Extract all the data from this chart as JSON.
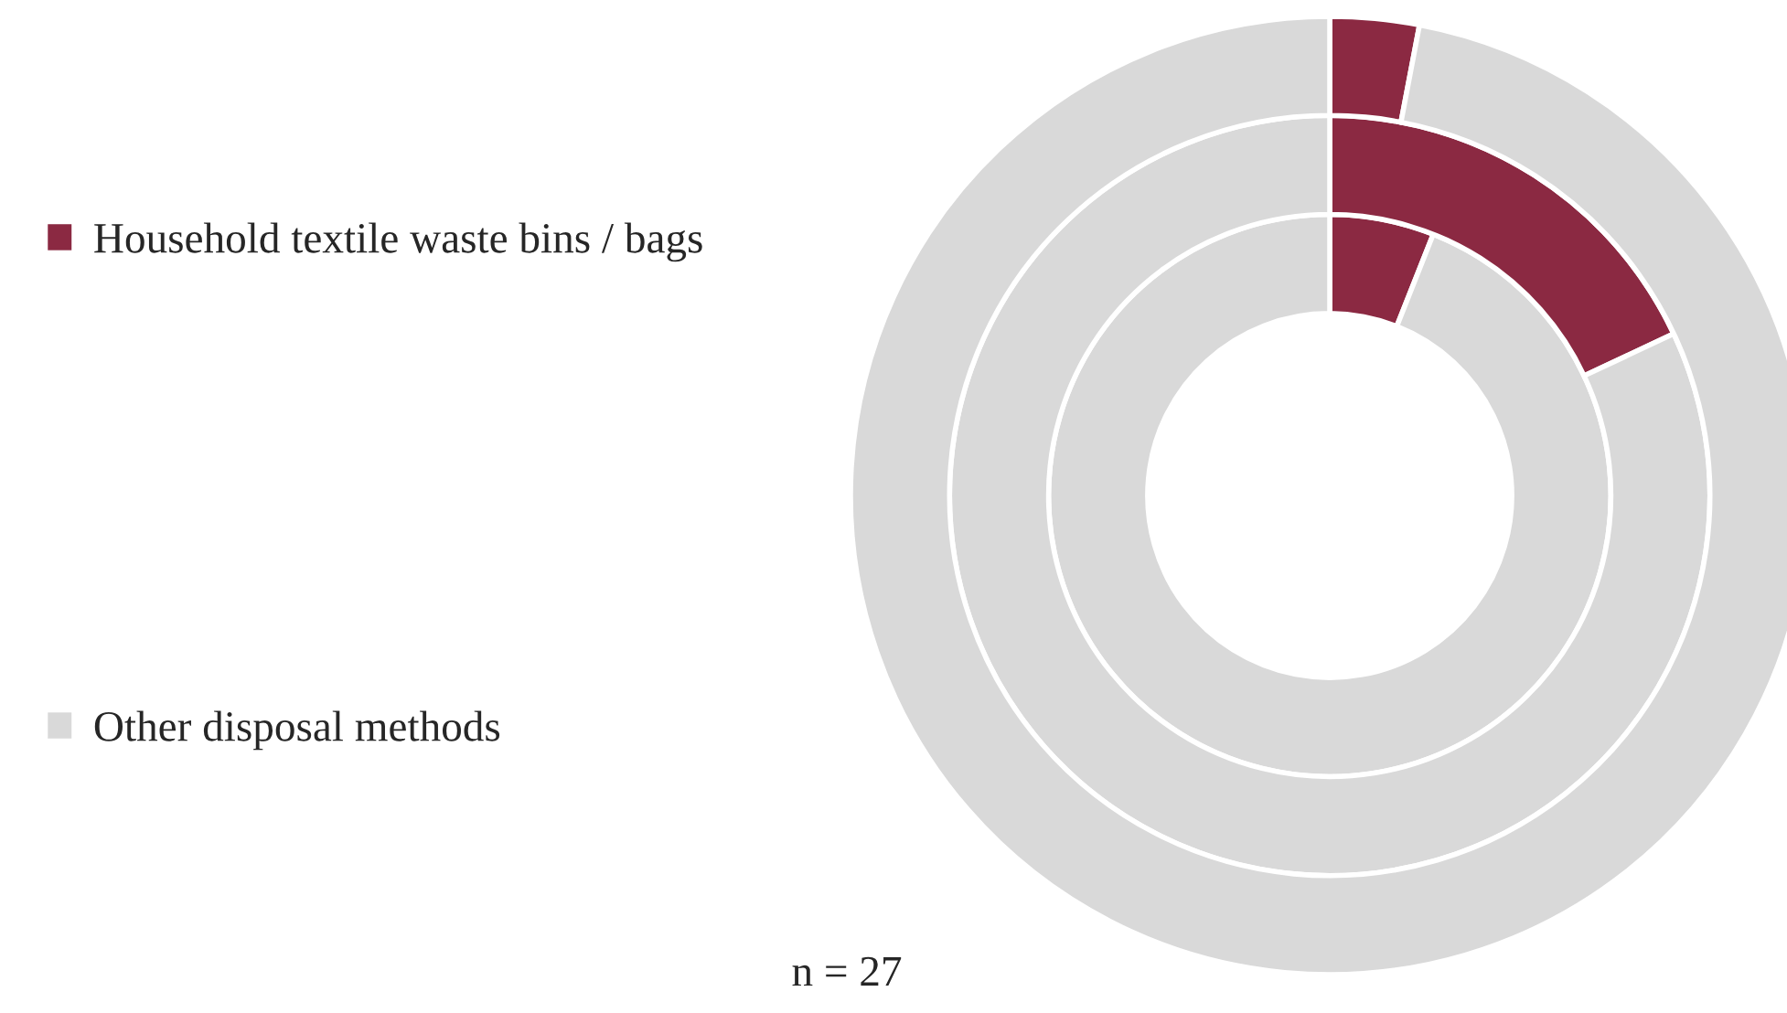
{
  "chart_data": {
    "type": "donut",
    "categories": [
      "Household textile waste bins / bags",
      "Other disposal methods"
    ],
    "colors": [
      "#8b2942",
      "#d9d9d9"
    ],
    "series": [
      {
        "values": [
          6,
          94
        ]
      },
      {
        "values": [
          18,
          82
        ]
      },
      {
        "values": [
          3,
          97
        ]
      }
    ],
    "legend": "left",
    "annotations": [
      "n = 27"
    ]
  }
}
